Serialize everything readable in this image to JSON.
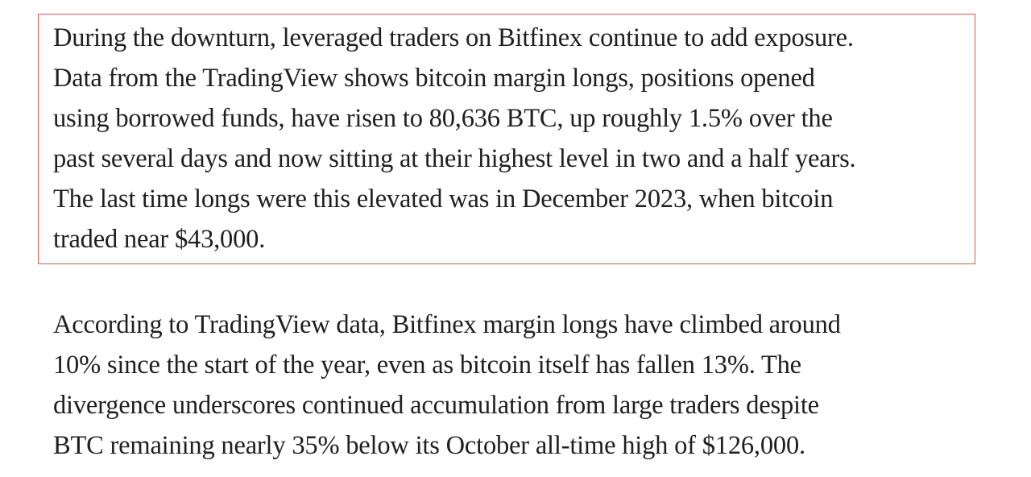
{
  "paragraphs": [
    {
      "lines": [
        "During the downturn, leveraged traders on Bitfinex continue to add exposure.",
        "Data from the TradingView shows bitcoin margin longs, positions opened",
        "using borrowed funds, have risen to 80,636 BTC, up roughly 1.5% over the",
        "past several days and now sitting at their highest level in two and a half years.",
        "The last time longs were this elevated was in December 2023, when bitcoin",
        "traded near $43,000."
      ]
    },
    {
      "lines": [
        "According to TradingView data, Bitfinex margin longs have climbed around",
        "10% since the start of the year, even as bitcoin itself has fallen 13%. The",
        "divergence underscores continued accumulation from large traders despite",
        "BTC remaining nearly 35% below its October all-time high of $126,000."
      ]
    }
  ]
}
